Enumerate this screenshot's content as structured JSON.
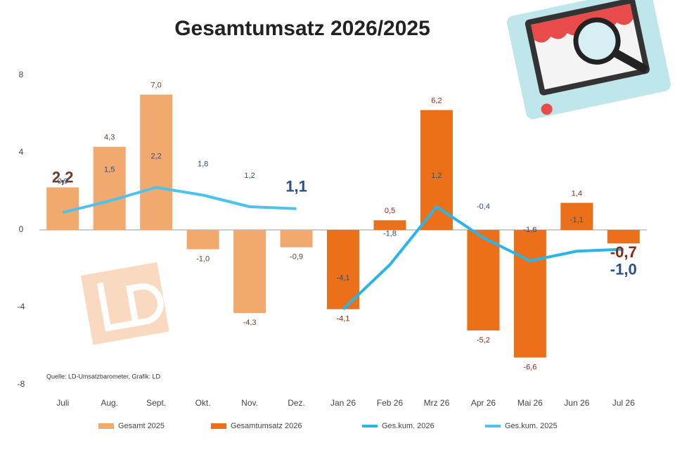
{
  "chart_data": {
    "type": "bar",
    "title": "Gesamtumsatz 2026/2025",
    "source": "Quelle: LD-Umsatzbarometer, Grafik: LD",
    "categories": [
      "Juli",
      "Aug.",
      "Sept.",
      "Okt.",
      "Nov.",
      "Dez.",
      "Jan 26",
      "Feb 26",
      "Mrz 26",
      "Apr 26",
      "Mai 26",
      "Jun 26",
      "Jul 26"
    ],
    "ylim": [
      -8,
      8
    ],
    "yticks": [
      -8,
      -4,
      0,
      4,
      8
    ],
    "grid": false,
    "legend": "bottom",
    "series": [
      {
        "name": "Gesamt 2025",
        "type": "bar",
        "color": "#f2a96e",
        "values": [
          2.2,
          4.3,
          7.0,
          -1.0,
          -4.3,
          -0.9,
          null,
          null,
          null,
          null,
          null,
          null,
          null
        ],
        "value_labels": [
          "2,2",
          "4,3",
          "7,0",
          "-1,0",
          "-4,3",
          "-0,9",
          null,
          null,
          null,
          null,
          null,
          null,
          null
        ]
      },
      {
        "name": "Gesamtumsatz 2026",
        "type": "bar",
        "color": "#ec7019",
        "values": [
          null,
          null,
          null,
          null,
          null,
          null,
          -4.1,
          0.5,
          6.2,
          -5.2,
          -6.6,
          1.4,
          -0.7
        ],
        "value_labels": [
          null,
          null,
          null,
          null,
          null,
          null,
          "-4,1",
          "0,5",
          "6,2",
          "-5,2",
          "-6,6",
          "1,4",
          "-0,7"
        ]
      },
      {
        "name": "Ges.kum. 2026",
        "type": "line",
        "color": "#29b5e8",
        "values": [
          null,
          null,
          null,
          null,
          null,
          null,
          -4.1,
          -1.8,
          1.2,
          -0.4,
          -1.6,
          -1.1,
          -1.0
        ],
        "value_labels": [
          null,
          null,
          null,
          null,
          null,
          null,
          "-4,1",
          "-1,8",
          "1,2",
          "-0,4",
          "-1,6",
          "-1,1",
          "-1,0"
        ]
      },
      {
        "name": "Ges.kum. 2025",
        "type": "line",
        "color": "#4cc3ee",
        "values": [
          0.9,
          1.5,
          2.2,
          1.8,
          1.2,
          1.1,
          null,
          null,
          null,
          null,
          null,
          null,
          null
        ],
        "value_labels": [
          "0,9",
          "1,5",
          "2,2",
          "1,8",
          "1,2",
          "1,1",
          null,
          null,
          null,
          null,
          null,
          null,
          null
        ]
      }
    ]
  }
}
